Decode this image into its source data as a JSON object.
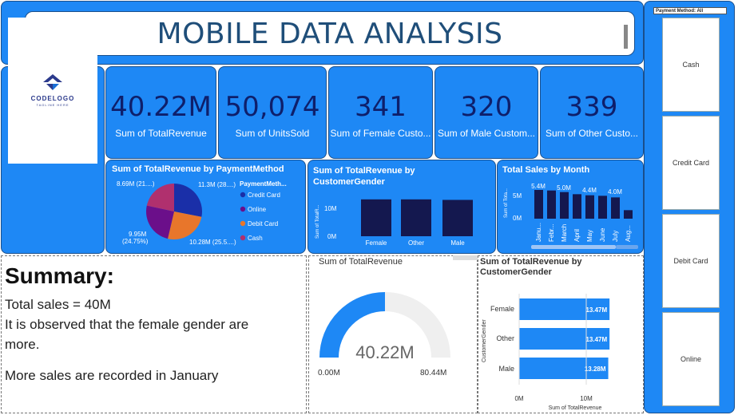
{
  "header": {
    "title": "MOBILE DATA ANALYSIS"
  },
  "logo": {
    "name": "CODELOGO",
    "tagline": "TAGLINE HERE"
  },
  "kpis": [
    {
      "value": "40.22M",
      "label": "Sum of TotalRevenue"
    },
    {
      "value": "50,074",
      "label": "Sum of UnitsSold"
    },
    {
      "value": "341",
      "label": "Sum of Female Custo..."
    },
    {
      "value": "320",
      "label": "Sum of Male Custom..."
    },
    {
      "value": "339",
      "label": "Sum of Other Custo..."
    }
  ],
  "pie": {
    "title": "Sum of TotalRevenue by PaymentMethod",
    "legend_title": "PaymentMeth...",
    "labels": {
      "credit": "11.3M (28....)",
      "cash": "8.69M (21....)",
      "online1": "9.95M",
      "online2": "(24.75%)",
      "debit": "10.28M (25.5....)"
    },
    "legend": [
      {
        "name": "Credit Card",
        "color": "#1a2fa8"
      },
      {
        "name": "Online",
        "color": "#6b0f8a"
      },
      {
        "name": "Debit Card",
        "color": "#e8762b"
      },
      {
        "name": "Cash",
        "color": "#b0306e"
      }
    ]
  },
  "gender_col": {
    "title": "Sum of TotalRevenue by CustomerGender",
    "ylabel": "Sum of TotalR...",
    "ticks": [
      "10M",
      "0M"
    ],
    "categories": [
      "Female",
      "Other",
      "Male"
    ]
  },
  "month": {
    "title": "Total Sales by Month",
    "ylabel": "Sum of Tota...",
    "ticks": [
      "5M",
      "0M"
    ],
    "data_labels": [
      "5.4M",
      "5.0M",
      "4.4M",
      "4.0M"
    ],
    "categories": [
      "Janu...",
      "Febr...",
      "March",
      "April",
      "May",
      "June",
      "July",
      "Aug..."
    ]
  },
  "gauge": {
    "title": "Sum of TotalRevenue",
    "value_text": "40.22M",
    "min_text": "0.00M",
    "max_text": "80.44M"
  },
  "hbar": {
    "title": "Sum of TotalRevenue by CustomerGender",
    "ylabel": "CustomerGender",
    "xlabel": "Sum of TotalRevenue",
    "ticks": [
      "0M",
      "10M"
    ],
    "categories": [
      "Female",
      "Other",
      "Male"
    ],
    "value_labels": [
      "13.47M",
      "13.47M",
      "13.28M"
    ]
  },
  "summary": {
    "heading": "Summary:",
    "line1": "Total sales = 40M",
    "line2a": "It is observed that the female gender are",
    "line2b": "more.",
    "line3": "More sales are recorded in January"
  },
  "slicer": {
    "title": "Payment Method: All",
    "options": [
      "Cash",
      "Credit Card",
      "Debit Card",
      "Online"
    ]
  },
  "chart_data": [
    {
      "type": "pie",
      "title": "Sum of TotalRevenue by PaymentMethod",
      "categories": [
        "Credit Card",
        "Debit Card",
        "Online",
        "Cash"
      ],
      "values": [
        11.3,
        10.28,
        9.95,
        8.69
      ],
      "unit": "M"
    },
    {
      "type": "bar",
      "title": "Sum of TotalRevenue by CustomerGender",
      "categories": [
        "Female",
        "Other",
        "Male"
      ],
      "values": [
        13.47,
        13.47,
        13.28
      ],
      "ylim": [
        0,
        14
      ],
      "unit": "M"
    },
    {
      "type": "bar",
      "title": "Total Sales by Month",
      "categories": [
        "January",
        "February",
        "March",
        "April",
        "May",
        "June",
        "July",
        "August"
      ],
      "values": [
        5.4,
        5.3,
        5.0,
        4.6,
        4.4,
        4.3,
        4.0,
        1.6
      ],
      "ylim": [
        0,
        6
      ],
      "unit": "M"
    },
    {
      "type": "gauge",
      "title": "Sum of TotalRevenue",
      "value": 40.22,
      "min": 0,
      "max": 80.44,
      "unit": "M"
    },
    {
      "type": "bar",
      "orientation": "horizontal",
      "title": "Sum of TotalRevenue by CustomerGender",
      "categories": [
        "Female",
        "Other",
        "Male"
      ],
      "values": [
        13.47,
        13.47,
        13.28
      ],
      "xlim": [
        0,
        14
      ],
      "unit": "M"
    }
  ]
}
